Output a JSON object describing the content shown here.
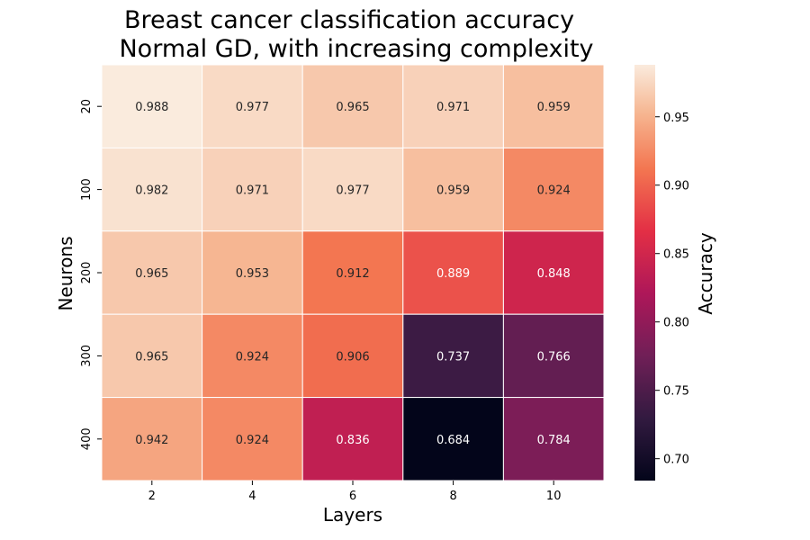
{
  "chart_data": {
    "type": "heatmap",
    "title_lines": [
      "Breast cancer classification accuracy",
      "Normal GD, with increasing complexity"
    ],
    "xlabel": "Layers",
    "ylabel": "Neurons",
    "x_categories": [
      "2",
      "4",
      "6",
      "8",
      "10"
    ],
    "y_categories": [
      "20",
      "100",
      "200",
      "300",
      "400"
    ],
    "values": [
      [
        0.988,
        0.977,
        0.965,
        0.971,
        0.959
      ],
      [
        0.982,
        0.971,
        0.977,
        0.959,
        0.924
      ],
      [
        0.965,
        0.953,
        0.912,
        0.889,
        0.848
      ],
      [
        0.965,
        0.924,
        0.906,
        0.737,
        0.766
      ],
      [
        0.942,
        0.924,
        0.836,
        0.684,
        0.784
      ]
    ],
    "value_format": "3 decimals",
    "colormap": "rocket",
    "color_range": [
      0.684,
      0.988
    ],
    "colorbar": {
      "label": "Accuracy",
      "ticks": [
        "0.70",
        "0.75",
        "0.80",
        "0.85",
        "0.90",
        "0.95"
      ]
    },
    "cell_borders": "white",
    "grid": false
  }
}
